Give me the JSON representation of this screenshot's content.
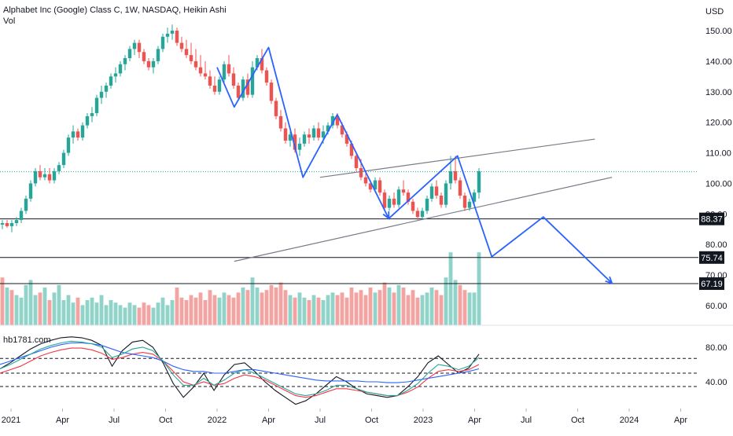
{
  "header": {
    "title": "Alphabet Inc (Google) Class C, 1W, NASDAQ, Heikin Ashi",
    "volume_label": "Vol",
    "currency": "USD"
  },
  "oscillator": {
    "label": "hb1781.com",
    "ticks": [
      "80.00",
      "40.00"
    ]
  },
  "colors": {
    "up": "#26a69a",
    "down": "#ef5350",
    "vol_up": "#8fd3c9",
    "vol_down": "#f5a3a1",
    "drawing": "#2962ff",
    "trendline": "#787b86",
    "level_line": "#131722",
    "last_price": "#26a69a",
    "osc_black": "#131722",
    "osc_red": "#f23645",
    "osc_blue": "#2962ff",
    "osc_green": "#26a69a"
  },
  "chart_data": {
    "type": "candlestick",
    "title": "Alphabet Inc (Google) Class C, 1W, NASDAQ, Heikin Ashi",
    "price_axis": {
      "ticks": [
        150,
        140,
        130,
        120,
        110,
        100,
        90,
        80,
        70,
        60
      ],
      "tick_labels": [
        "150.00",
        "140.00",
        "130.00",
        "120.00",
        "110.00",
        "100.00",
        "90.00",
        "80.00",
        "70.00",
        "60.00"
      ],
      "range": [
        56,
        156
      ]
    },
    "time_axis": {
      "labels": [
        "2021",
        "Apr",
        "Jul",
        "Oct",
        "2022",
        "Apr",
        "Jul",
        "Oct",
        "2023",
        "Apr",
        "Jul",
        "Oct",
        "2024",
        "Apr"
      ],
      "label_dates": [
        "2021-01",
        "2021-04",
        "2021-07",
        "2021-10",
        "2022-01",
        "2022-04",
        "2022-07",
        "2022-10",
        "2023-01",
        "2023-04",
        "2023-07",
        "2023-10",
        "2024-01",
        "2024-04"
      ]
    },
    "horizontal_levels": [
      {
        "value": 88.37,
        "label": "88.37"
      },
      {
        "value": 75.74,
        "label": "75.74"
      },
      {
        "value": 67.19,
        "label": "67.19"
      }
    ],
    "last_price": 103.8,
    "candles": [
      [
        86.5,
        88,
        85,
        87
      ],
      [
        87,
        88,
        85.5,
        86
      ],
      [
        86,
        88,
        84,
        87
      ],
      [
        87,
        89,
        86,
        88
      ],
      [
        88,
        92,
        87,
        91
      ],
      [
        91,
        96,
        90,
        95
      ],
      [
        95,
        101,
        94,
        100
      ],
      [
        100,
        105,
        99,
        104
      ],
      [
        104,
        106,
        101,
        102
      ],
      [
        102,
        105,
        101,
        103
      ],
      [
        103,
        105,
        100,
        101
      ],
      [
        101,
        105,
        100,
        104
      ],
      [
        104,
        107,
        103,
        106
      ],
      [
        106,
        111,
        105,
        110
      ],
      [
        110,
        116,
        109,
        115
      ],
      [
        115,
        119,
        113,
        117
      ],
      [
        117,
        118,
        114,
        115
      ],
      [
        115,
        120,
        114,
        119
      ],
      [
        119,
        123,
        118,
        122
      ],
      [
        122,
        125,
        120,
        123
      ],
      [
        123,
        129,
        122,
        128
      ],
      [
        128,
        132,
        126,
        130
      ],
      [
        130,
        133,
        128,
        132
      ],
      [
        132,
        136,
        131,
        135
      ],
      [
        135,
        138,
        133,
        136
      ],
      [
        136,
        140,
        135,
        139
      ],
      [
        139,
        142,
        137,
        141
      ],
      [
        141,
        145,
        140,
        144
      ],
      [
        144,
        147,
        142,
        146
      ],
      [
        146,
        147,
        141,
        143
      ],
      [
        143,
        144,
        139,
        140
      ],
      [
        140,
        141,
        137,
        138
      ],
      [
        138,
        141,
        136,
        140
      ],
      [
        140,
        145,
        139,
        144
      ],
      [
        144,
        149,
        143,
        148
      ],
      [
        148,
        151,
        146,
        149
      ],
      [
        149,
        152,
        147,
        150
      ],
      [
        150,
        151,
        145,
        146
      ],
      [
        146,
        148,
        143,
        144
      ],
      [
        144,
        147,
        141,
        142
      ],
      [
        142,
        146,
        139,
        140
      ],
      [
        140,
        144,
        137,
        138
      ],
      [
        138,
        142,
        135,
        136
      ],
      [
        136,
        140,
        134,
        135
      ],
      [
        135,
        137,
        131,
        132
      ],
      [
        132,
        135,
        129,
        130
      ],
      [
        130,
        135,
        129,
        134
      ],
      [
        134,
        140,
        133,
        139
      ],
      [
        139,
        142,
        135,
        136
      ],
      [
        136,
        138,
        131,
        132
      ],
      [
        132,
        133,
        127,
        128
      ],
      [
        128,
        135,
        127,
        134
      ],
      [
        134,
        136,
        128,
        129
      ],
      [
        129,
        140,
        128,
        138
      ],
      [
        138,
        142,
        137,
        141
      ],
      [
        141,
        144,
        136,
        137
      ],
      [
        137,
        138,
        132,
        133
      ],
      [
        133,
        134,
        126,
        127
      ],
      [
        127,
        128,
        121,
        122
      ],
      [
        122,
        124,
        117,
        118
      ],
      [
        118,
        120,
        113,
        114
      ],
      [
        114,
        117,
        112,
        116
      ],
      [
        116,
        118,
        110,
        111
      ],
      [
        111,
        115,
        109,
        113
      ],
      [
        113,
        117,
        112,
        116
      ],
      [
        116,
        118,
        113,
        115
      ],
      [
        115,
        119,
        114,
        118
      ],
      [
        118,
        120,
        114,
        115
      ],
      [
        115,
        119,
        113,
        117
      ],
      [
        117,
        120,
        116,
        119
      ],
      [
        119,
        123,
        118,
        122
      ],
      [
        122,
        123,
        118,
        119
      ],
      [
        119,
        120,
        115,
        116
      ],
      [
        116,
        117,
        112,
        113
      ],
      [
        113,
        114,
        108,
        109
      ],
      [
        109,
        110,
        104,
        105
      ],
      [
        105,
        108,
        101,
        102
      ],
      [
        102,
        104,
        99,
        100
      ],
      [
        100,
        101,
        97,
        98
      ],
      [
        98,
        102,
        97,
        101
      ],
      [
        101,
        102,
        96,
        97
      ],
      [
        97,
        98,
        91,
        92
      ],
      [
        92,
        96,
        91,
        95
      ],
      [
        95,
        97,
        92,
        93
      ],
      [
        93,
        99,
        92,
        98
      ],
      [
        98,
        101,
        96,
        97
      ],
      [
        97,
        98,
        93,
        94
      ],
      [
        94,
        95,
        90,
        91
      ],
      [
        91,
        92,
        88,
        89
      ],
      [
        89,
        92,
        88,
        91
      ],
      [
        91,
        96,
        90,
        95
      ],
      [
        95,
        100,
        94,
        99
      ],
      [
        99,
        101,
        95,
        96
      ],
      [
        96,
        97,
        92,
        93
      ],
      [
        93,
        101,
        92,
        100
      ],
      [
        100,
        109,
        98,
        104
      ],
      [
        104,
        109,
        100,
        101
      ],
      [
        101,
        102,
        95,
        96
      ],
      [
        96,
        97,
        91,
        92
      ],
      [
        92,
        95,
        91,
        94
      ],
      [
        94,
        98,
        93,
        97
      ],
      [
        97,
        105,
        95,
        104
      ]
    ],
    "volume": [
      [
        0,
        19
      ],
      [
        1,
        15
      ],
      [
        0,
        14
      ],
      [
        1,
        12
      ],
      [
        1,
        11
      ],
      [
        1,
        16
      ],
      [
        1,
        18
      ],
      [
        1,
        12
      ],
      [
        0,
        13
      ],
      [
        1,
        15
      ],
      [
        0,
        10
      ],
      [
        1,
        13
      ],
      [
        1,
        16
      ],
      [
        1,
        10
      ],
      [
        1,
        12
      ],
      [
        1,
        9
      ],
      [
        0,
        11
      ],
      [
        1,
        8
      ],
      [
        1,
        10
      ],
      [
        1,
        11
      ],
      [
        1,
        9
      ],
      [
        1,
        12
      ],
      [
        1,
        8
      ],
      [
        1,
        10
      ],
      [
        1,
        9
      ],
      [
        1,
        8
      ],
      [
        1,
        7
      ],
      [
        1,
        9
      ],
      [
        1,
        8
      ],
      [
        0,
        7
      ],
      [
        0,
        9
      ],
      [
        0,
        8
      ],
      [
        1,
        7
      ],
      [
        1,
        9
      ],
      [
        1,
        11
      ],
      [
        1,
        8
      ],
      [
        1,
        10
      ],
      [
        0,
        15
      ],
      [
        0,
        11
      ],
      [
        0,
        10
      ],
      [
        0,
        12
      ],
      [
        0,
        11
      ],
      [
        0,
        13
      ],
      [
        0,
        10
      ],
      [
        0,
        14
      ],
      [
        0,
        12
      ],
      [
        1,
        11
      ],
      [
        1,
        13
      ],
      [
        0,
        12
      ],
      [
        0,
        11
      ],
      [
        0,
        13
      ],
      [
        1,
        15
      ],
      [
        0,
        14
      ],
      [
        1,
        19
      ],
      [
        1,
        15
      ],
      [
        0,
        13
      ],
      [
        0,
        14
      ],
      [
        0,
        16
      ],
      [
        0,
        15
      ],
      [
        0,
        17
      ],
      [
        0,
        14
      ],
      [
        1,
        12
      ],
      [
        0,
        11
      ],
      [
        1,
        13
      ],
      [
        1,
        11
      ],
      [
        0,
        10
      ],
      [
        1,
        12
      ],
      [
        0,
        11
      ],
      [
        1,
        10
      ],
      [
        1,
        12
      ],
      [
        1,
        13
      ],
      [
        0,
        12
      ],
      [
        0,
        13
      ],
      [
        0,
        11
      ],
      [
        0,
        15
      ],
      [
        0,
        13
      ],
      [
        0,
        14
      ],
      [
        0,
        12
      ],
      [
        0,
        15
      ],
      [
        1,
        13
      ],
      [
        0,
        14
      ],
      [
        0,
        17
      ],
      [
        1,
        15
      ],
      [
        0,
        13
      ],
      [
        1,
        16
      ],
      [
        0,
        15
      ],
      [
        0,
        12
      ],
      [
        0,
        14
      ],
      [
        0,
        11
      ],
      [
        1,
        12
      ],
      [
        1,
        13
      ],
      [
        1,
        15
      ],
      [
        0,
        14
      ],
      [
        0,
        12
      ],
      [
        1,
        19
      ],
      [
        1,
        29
      ],
      [
        1,
        18
      ],
      [
        0,
        16
      ],
      [
        0,
        14
      ],
      [
        1,
        13
      ],
      [
        1,
        13
      ],
      [
        1,
        29
      ]
    ],
    "rising_wedge": {
      "upper": [
        [
          "2022-07",
          102
        ],
        [
          "2023-11",
          114.5
        ]
      ],
      "lower": [
        [
          "2022-02",
          74.5
        ],
        [
          "2023-12",
          102
        ]
      ]
    },
    "projection_path": [
      [
        "2022-01",
        138
      ],
      [
        "2022-02",
        125
      ],
      [
        "2022-04",
        144.5
      ],
      [
        "2022-06",
        102
      ],
      [
        "2022-08",
        122.5
      ],
      [
        "2022-11",
        88.5
      ],
      [
        "2023-03",
        109
      ],
      [
        "2023-05",
        76
      ],
      [
        "2023-08",
        89
      ],
      [
        "2023-12",
        67.3
      ]
    ],
    "oscillator": {
      "ticks": [
        80,
        40
      ],
      "dashed_levels": [
        67,
        50
      ],
      "series": [
        {
          "color": "#131722",
          "values": [
            55,
            62,
            70,
            78,
            84,
            88,
            91,
            92,
            91,
            88,
            82,
            58,
            76,
            86,
            88,
            80,
            62,
            38,
            22,
            34,
            50,
            30,
            48,
            60,
            62,
            52,
            40,
            30,
            22,
            14,
            18,
            26,
            36,
            46,
            40,
            32,
            26,
            24,
            22,
            24,
            34,
            46,
            62,
            70,
            60,
            50,
            56,
            72
          ]
        },
        {
          "color": "#f23645",
          "values": [
            50,
            54,
            58,
            64,
            70,
            74,
            77,
            79,
            79,
            77,
            73,
            66,
            68,
            72,
            74,
            72,
            64,
            52,
            40,
            36,
            40,
            36,
            38,
            44,
            48,
            46,
            42,
            36,
            30,
            24,
            22,
            24,
            28,
            32,
            32,
            30,
            28,
            26,
            24,
            24,
            28,
            34,
            44,
            52,
            54,
            52,
            54,
            60
          ]
        },
        {
          "color": "#2962ff",
          "values": [
            60,
            64,
            68,
            72,
            76,
            80,
            83,
            85,
            85,
            84,
            82,
            78,
            74,
            72,
            70,
            68,
            64,
            58,
            54,
            52,
            52,
            50,
            50,
            52,
            54,
            54,
            52,
            50,
            48,
            46,
            44,
            42,
            41,
            41,
            41,
            41,
            40,
            40,
            39,
            39,
            40,
            42,
            44,
            46,
            48,
            50,
            52,
            55
          ]
        },
        {
          "color": "#26a69a",
          "values": [
            55,
            60,
            66,
            72,
            78,
            82,
            85,
            87,
            86,
            84,
            80,
            68,
            72,
            78,
            80,
            76,
            64,
            48,
            36,
            36,
            44,
            36,
            42,
            50,
            54,
            50,
            44,
            38,
            32,
            26,
            24,
            26,
            30,
            36,
            36,
            32,
            28,
            26,
            24,
            24,
            30,
            38,
            50,
            60,
            58,
            54,
            58,
            68
          ]
        }
      ]
    }
  }
}
